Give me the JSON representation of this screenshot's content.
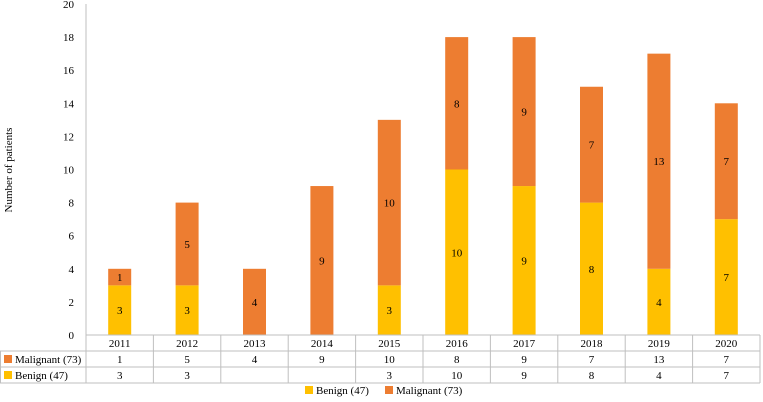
{
  "chart_data": {
    "type": "bar",
    "stacked": true,
    "categories": [
      "2011",
      "2012",
      "2013",
      "2014",
      "2015",
      "2016",
      "2017",
      "2018",
      "2019",
      "2020"
    ],
    "series": [
      {
        "name": "Benign (47)",
        "color": "#FFC000",
        "values": [
          3,
          3,
          null,
          null,
          3,
          10,
          9,
          8,
          4,
          7
        ]
      },
      {
        "name": "Malignant (73)",
        "color": "#ED7D31",
        "values": [
          1,
          5,
          4,
          9,
          10,
          8,
          9,
          7,
          13,
          7
        ]
      }
    ],
    "ylabel": "Number of patients",
    "ylim": [
      0,
      20
    ],
    "yticks": [
      0,
      2,
      4,
      6,
      8,
      10,
      12,
      14,
      16,
      18,
      20
    ],
    "grid": false,
    "data_table": true,
    "legend_position": "bottom"
  }
}
